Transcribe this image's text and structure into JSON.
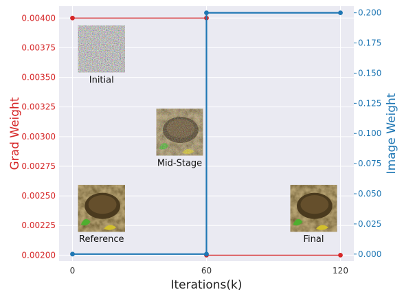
{
  "chart_data": {
    "type": "line",
    "xlabel": "Iterations(k)",
    "ylabel_left": "Grad Weight",
    "ylabel_right": "Image Weight",
    "x_ticks": [
      0,
      60,
      120
    ],
    "left_ticks": [
      "0.00200",
      "0.00225",
      "0.00250",
      "0.00275",
      "0.00300",
      "0.00325",
      "0.00350",
      "0.00375",
      "0.00400"
    ],
    "right_ticks": [
      "0.000",
      "0.025",
      "0.050",
      "0.075",
      "0.100",
      "0.125",
      "0.150",
      "0.175",
      "0.200"
    ],
    "xlim": [
      -6,
      126
    ],
    "ylim_left": [
      0.00195,
      0.0041
    ],
    "ylim_right": [
      -0.0058,
      0.2055
    ],
    "grid": true,
    "colors": {
      "grad": "#d62728",
      "image": "#1f77b4",
      "background": "#eaeaf2"
    },
    "series": [
      {
        "axis": "left",
        "color": "#d62728",
        "points": [
          [
            0,
            0.004
          ],
          [
            60,
            0.004
          ],
          [
            60,
            0.002
          ],
          [
            120,
            0.002
          ]
        ]
      },
      {
        "axis": "right",
        "color": "#1f77b4",
        "points": [
          [
            0,
            0.0
          ],
          [
            60,
            0.0
          ],
          [
            60,
            0.2
          ],
          [
            120,
            0.2
          ]
        ]
      }
    ],
    "annotations": [
      {
        "label": "Initial",
        "image": "noise",
        "x": 13,
        "y_right": 0.17
      },
      {
        "label": "Mid-Stage",
        "image": "turtle-noisy",
        "x": 48,
        "y_right": 0.101
      },
      {
        "label": "Reference",
        "image": "turtle",
        "x": 13,
        "y_right": 0.038
      },
      {
        "label": "Final",
        "image": "turtle",
        "x": 108,
        "y_right": 0.038
      }
    ]
  }
}
